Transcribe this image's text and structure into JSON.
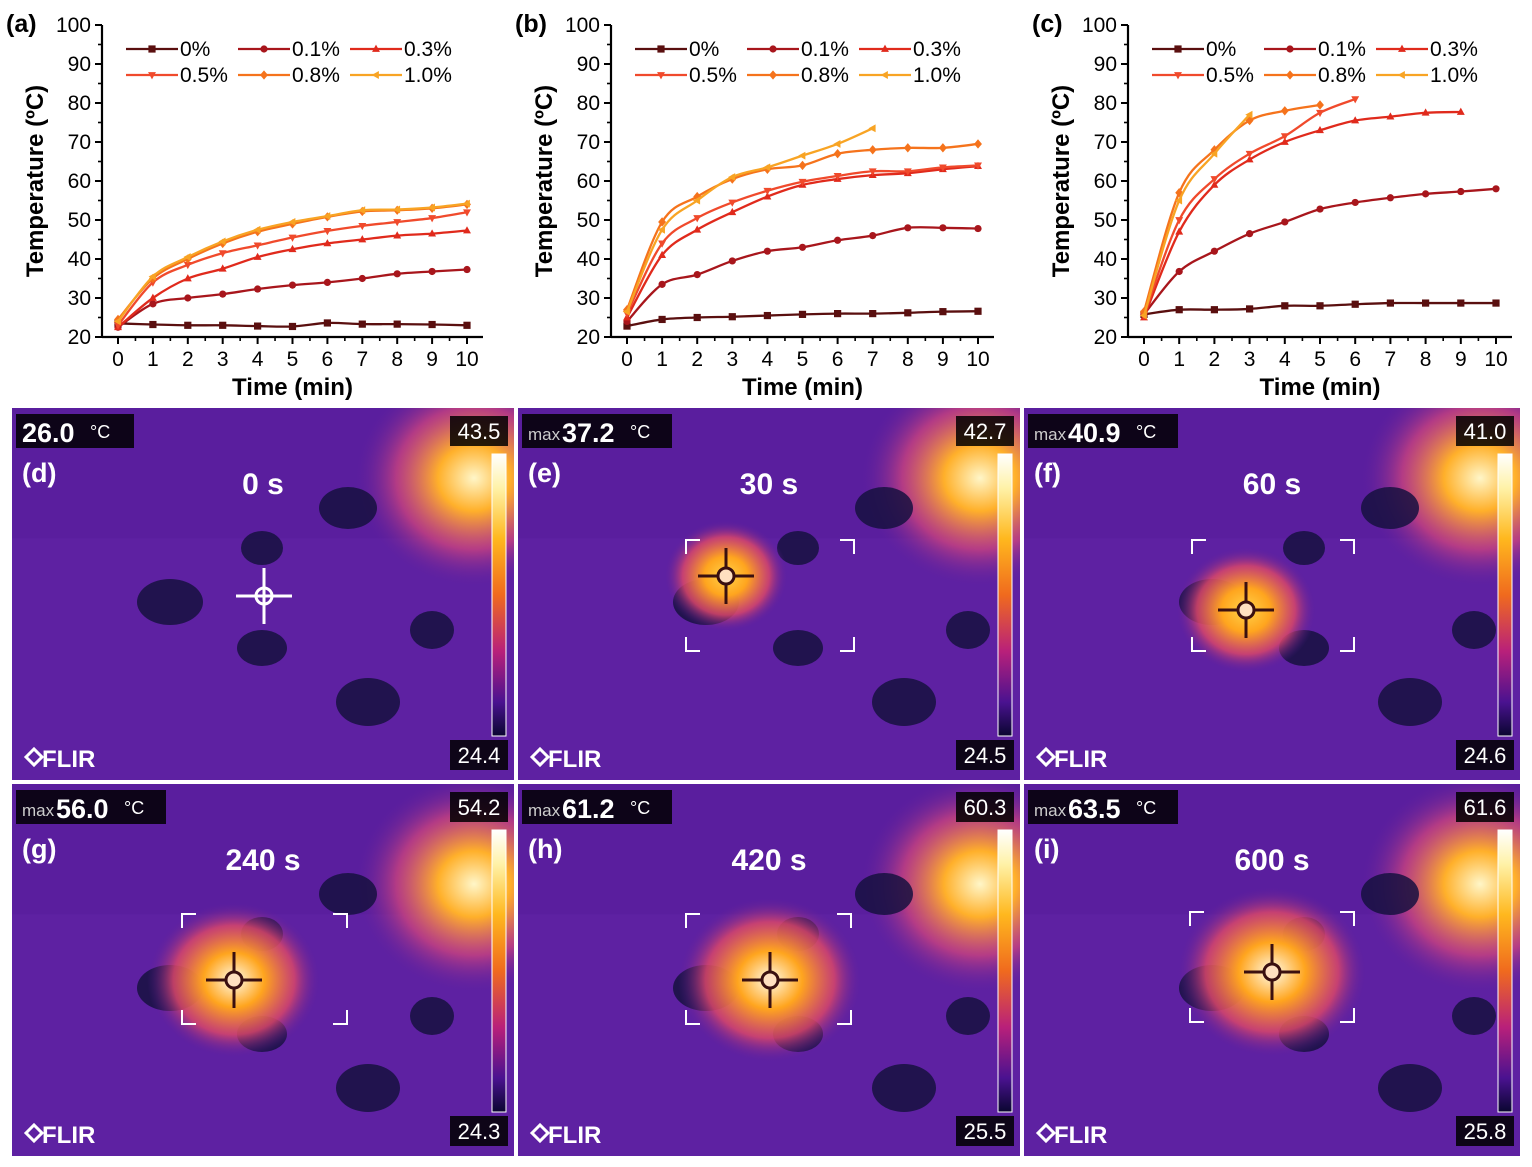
{
  "legend_labels": [
    "0%",
    "0.1%",
    "0.3%",
    "0.5%",
    "0.8%",
    "1.0%"
  ],
  "colors": {
    "0%": "#5a0f0f",
    "0.1%": "#a8161c",
    "0.3%": "#e02a1c",
    "0.5%": "#f04a2c",
    "0.8%": "#f5731c",
    "1.0%": "#f8a424",
    "thermal_bg": "#5a1e9e",
    "panel_text": "#ffffff"
  },
  "chart_data": [
    {
      "panel": "(a)",
      "type": "line",
      "xlabel": "Time (min)",
      "ylabel": "Temperature (ºC)",
      "xlim": [
        0,
        10
      ],
      "ylim": [
        20,
        100
      ],
      "xticks": [
        "0",
        "1",
        "2",
        "3",
        "4",
        "5",
        "6",
        "7",
        "8",
        "9",
        "10"
      ],
      "yticks": [
        "20",
        "30",
        "40",
        "50",
        "60",
        "70",
        "80",
        "90",
        "100"
      ],
      "legend": "top-left",
      "series": [
        {
          "name": "0%",
          "marker": "square",
          "x": [
            0,
            1,
            2,
            3,
            4,
            5,
            6,
            7,
            8,
            9,
            10
          ],
          "y": [
            23.5,
            23.2,
            23.0,
            23.0,
            22.8,
            22.7,
            23.6,
            23.3,
            23.3,
            23.2,
            23.0
          ]
        },
        {
          "name": "0.1%",
          "marker": "circle",
          "x": [
            0,
            1,
            2,
            3,
            4,
            5,
            6,
            7,
            8,
            9,
            10
          ],
          "y": [
            22.5,
            28.5,
            30.0,
            31.0,
            32.3,
            33.3,
            34.0,
            35.0,
            36.2,
            36.8,
            37.3
          ]
        },
        {
          "name": "0.3%",
          "marker": "triangle-up",
          "x": [
            0,
            1,
            2,
            3,
            4,
            5,
            6,
            7,
            8,
            9,
            10
          ],
          "y": [
            22.5,
            30.0,
            35.0,
            37.5,
            40.5,
            42.5,
            44.0,
            45.0,
            46.0,
            46.5,
            47.3
          ]
        },
        {
          "name": "0.5%",
          "marker": "triangle-down",
          "x": [
            0,
            1,
            2,
            3,
            4,
            5,
            6,
            7,
            8,
            9,
            10
          ],
          "y": [
            23.0,
            34.0,
            38.5,
            41.5,
            43.5,
            45.5,
            47.2,
            48.5,
            49.5,
            50.5,
            52.0
          ]
        },
        {
          "name": "0.8%",
          "marker": "diamond",
          "x": [
            0,
            1,
            2,
            3,
            4,
            5,
            6,
            7,
            8,
            9,
            10
          ],
          "y": [
            24.5,
            35.0,
            40.0,
            44.0,
            47.0,
            49.0,
            50.8,
            52.2,
            52.5,
            53.0,
            54.0
          ]
        },
        {
          "name": "1.0%",
          "marker": "triangle-left",
          "x": [
            0,
            1,
            2,
            3,
            4,
            5,
            6,
            7,
            8,
            9,
            10
          ],
          "y": [
            24.0,
            35.5,
            40.5,
            44.5,
            47.5,
            49.5,
            51.0,
            52.5,
            52.7,
            53.2,
            54.2
          ]
        }
      ]
    },
    {
      "panel": "(b)",
      "type": "line",
      "xlabel": "Time (min)",
      "ylabel": "Temperature (ºC)",
      "xlim": [
        0,
        10
      ],
      "ylim": [
        20,
        100
      ],
      "xticks": [
        "0",
        "1",
        "2",
        "3",
        "4",
        "5",
        "6",
        "7",
        "8",
        "9",
        "10"
      ],
      "yticks": [
        "20",
        "30",
        "40",
        "50",
        "60",
        "70",
        "80",
        "90",
        "100"
      ],
      "legend": "top-left",
      "series": [
        {
          "name": "0%",
          "marker": "square",
          "x": [
            0,
            1,
            2,
            3,
            4,
            5,
            6,
            7,
            8,
            9,
            10
          ],
          "y": [
            22.8,
            24.5,
            25.0,
            25.2,
            25.5,
            25.8,
            26.0,
            26.0,
            26.2,
            26.5,
            26.6
          ]
        },
        {
          "name": "0.1%",
          "marker": "circle",
          "x": [
            0,
            1,
            2,
            3,
            4,
            5,
            6,
            7,
            8,
            9,
            10
          ],
          "y": [
            24.0,
            33.5,
            36.0,
            39.5,
            42.0,
            43.0,
            44.8,
            46.0,
            48.0,
            48.0,
            47.8
          ]
        },
        {
          "name": "0.3%",
          "marker": "triangle-up",
          "x": [
            0,
            1,
            2,
            3,
            4,
            5,
            6,
            7,
            8,
            9,
            10
          ],
          "y": [
            25.0,
            41.0,
            47.5,
            52.0,
            56.0,
            59.0,
            60.5,
            61.5,
            62.0,
            63.0,
            63.8
          ]
        },
        {
          "name": "0.5%",
          "marker": "triangle-down",
          "x": [
            0,
            1,
            2,
            3,
            4,
            5,
            6,
            7,
            8,
            9,
            10
          ],
          "y": [
            26.0,
            44.0,
            50.5,
            54.5,
            57.5,
            59.8,
            61.3,
            62.5,
            62.5,
            63.5,
            64.0
          ]
        },
        {
          "name": "0.8%",
          "marker": "diamond",
          "x": [
            0,
            1,
            2,
            3,
            4,
            5,
            6,
            7,
            8,
            9,
            10
          ],
          "y": [
            27.0,
            49.5,
            56.0,
            60.5,
            63.0,
            64.0,
            67.0,
            68.0,
            68.5,
            68.5,
            69.5
          ]
        },
        {
          "name": "1.0%",
          "marker": "triangle-left",
          "x": [
            0,
            1,
            2,
            3,
            4,
            5,
            6,
            7
          ],
          "y": [
            26.5,
            47.5,
            55.0,
            61.0,
            63.5,
            66.5,
            69.5,
            73.5
          ]
        }
      ]
    },
    {
      "panel": "(c)",
      "type": "line",
      "xlabel": "Time (min)",
      "ylabel": "Temperature (ºC)",
      "xlim": [
        0,
        10
      ],
      "ylim": [
        20,
        100
      ],
      "xticks": [
        "0",
        "1",
        "2",
        "3",
        "4",
        "5",
        "6",
        "7",
        "8",
        "9",
        "10"
      ],
      "yticks": [
        "20",
        "30",
        "40",
        "50",
        "60",
        "70",
        "80",
        "90",
        "100"
      ],
      "legend": "top-left",
      "series": [
        {
          "name": "0%",
          "marker": "square",
          "x": [
            0,
            1,
            2,
            3,
            4,
            5,
            6,
            7,
            8,
            9,
            10
          ],
          "y": [
            25.8,
            27.0,
            27.0,
            27.2,
            28.0,
            28.0,
            28.4,
            28.7,
            28.7,
            28.7,
            28.7
          ]
        },
        {
          "name": "0.1%",
          "marker": "circle",
          "x": [
            0,
            1,
            2,
            3,
            4,
            5,
            6,
            7,
            8,
            9,
            10
          ],
          "y": [
            25.8,
            36.8,
            42.0,
            46.5,
            49.5,
            52.8,
            54.5,
            55.7,
            56.7,
            57.3,
            58.0
          ]
        },
        {
          "name": "0.3%",
          "marker": "triangle-up",
          "x": [
            0,
            1,
            2,
            3,
            4,
            5,
            6,
            7,
            8,
            9
          ],
          "y": [
            25.0,
            47.0,
            59.0,
            65.5,
            70.0,
            73.0,
            75.5,
            76.5,
            77.5,
            77.7
          ]
        },
        {
          "name": "0.5%",
          "marker": "triangle-down",
          "x": [
            0,
            1,
            2,
            3,
            4,
            5,
            6
          ],
          "y": [
            25.5,
            50.0,
            60.5,
            67.0,
            71.5,
            77.5,
            81.0
          ]
        },
        {
          "name": "0.8%",
          "marker": "diamond",
          "x": [
            0,
            1,
            2,
            3,
            4,
            5
          ],
          "y": [
            26.5,
            57.0,
            68.0,
            75.5,
            78.0,
            79.5
          ]
        },
        {
          "name": "1.0%",
          "marker": "triangle-left",
          "x": [
            0,
            1,
            2,
            3
          ],
          "y": [
            25.5,
            55.0,
            67.0,
            77.0
          ]
        }
      ]
    }
  ],
  "thermal_images": [
    {
      "panel": "(d)",
      "time": "0 s",
      "max_prefix": "",
      "max_value": "26.0",
      "unit": "°C",
      "scale_max": "43.5",
      "scale_min": "24.4",
      "brand": "FLIR",
      "show_box": false,
      "hot": 0.0
    },
    {
      "panel": "(e)",
      "time": "30 s",
      "max_prefix": "max",
      "max_value": "37.2",
      "unit": "°C",
      "scale_max": "42.7",
      "scale_min": "24.5",
      "brand": "FLIR",
      "show_box": true,
      "hot": 0.4
    },
    {
      "panel": "(f)",
      "time": "60 s",
      "max_prefix": "max",
      "max_value": "40.9",
      "unit": "°C",
      "scale_max": "41.0",
      "scale_min": "24.6",
      "brand": "FLIR",
      "show_box": true,
      "hot": 0.55
    },
    {
      "panel": "(g)",
      "time": "240 s",
      "max_prefix": "max",
      "max_value": "56.0",
      "unit": "°C",
      "scale_max": "54.2",
      "scale_min": "24.3",
      "brand": "FLIR",
      "show_box": true,
      "hot": 0.85
    },
    {
      "panel": "(h)",
      "time": "420 s",
      "max_prefix": "max",
      "max_value": "61.2",
      "unit": "°C",
      "scale_max": "60.3",
      "scale_min": "25.5",
      "brand": "FLIR",
      "show_box": true,
      "hot": 0.95
    },
    {
      "panel": "(i)",
      "time": "600 s",
      "max_prefix": "max",
      "max_value": "63.5",
      "unit": "°C",
      "scale_max": "61.6",
      "scale_min": "25.8",
      "brand": "FLIR",
      "show_box": true,
      "hot": 1.0
    }
  ]
}
